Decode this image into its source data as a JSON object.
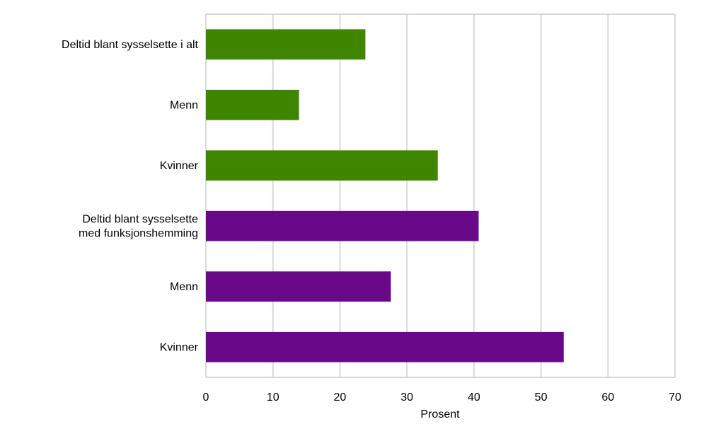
{
  "chart_data": {
    "type": "bar",
    "orientation": "horizontal",
    "title": "",
    "xlabel": "Prosent",
    "ylabel": "",
    "xlim": [
      0,
      70
    ],
    "xticks": [
      0,
      10,
      20,
      30,
      40,
      50,
      60,
      70
    ],
    "xtick_labels": [
      "0",
      "10",
      "20",
      "30",
      "40",
      "50",
      "60",
      "70"
    ],
    "grid": true,
    "legend": "none",
    "categories": [
      [
        "Deltid blant sysselsette i alt"
      ],
      [
        "Menn"
      ],
      [
        "Kvinner"
      ],
      [
        "Deltid blant sysselsette",
        "med funksjonshemming"
      ],
      [
        "Menn"
      ],
      [
        "Kvinner"
      ]
    ],
    "values": [
      23.8,
      13.9,
      34.6,
      40.7,
      27.6,
      53.4
    ],
    "bar_colors": [
      "#3f8500",
      "#3f8500",
      "#3f8500",
      "#690889",
      "#690889",
      "#690889"
    ],
    "colors": {
      "group_all": "#3f8500",
      "group_disabled": "#690889",
      "grid": "#d9d9d9"
    }
  }
}
